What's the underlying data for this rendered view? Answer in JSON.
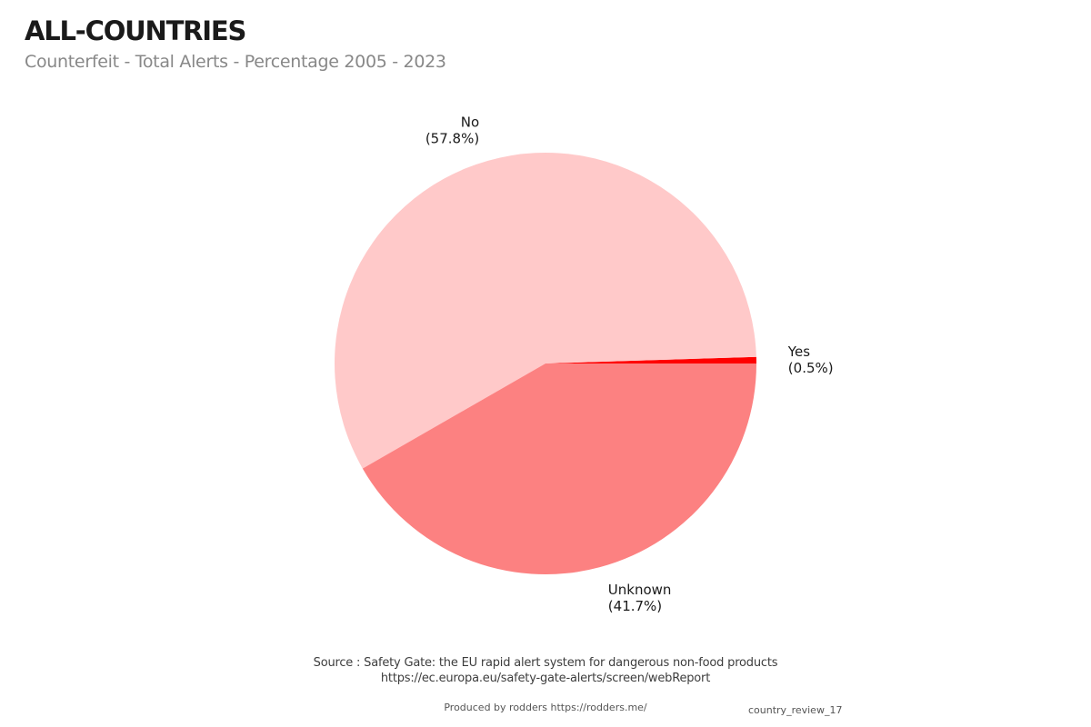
{
  "header": {
    "title": "ALL-COUNTRIES",
    "subtitle": "Counterfeit - Total Alerts - Percentage 2005 - 2023"
  },
  "chart_data": {
    "type": "pie",
    "title": "ALL-COUNTRIES",
    "subtitle": "Counterfeit - Total Alerts - Percentage 2005 - 2023",
    "slices": [
      {
        "label": "Yes",
        "value": 0.5,
        "percent_display": "(0.5%)",
        "color": "#ff0000"
      },
      {
        "label": "No",
        "value": 57.8,
        "percent_display": "(57.8%)",
        "color": "#ffc9c9"
      },
      {
        "label": "Unknown",
        "value": 41.7,
        "percent_display": "(41.7%)",
        "color": "#fc8181"
      }
    ],
    "start_angle_deg": 0,
    "direction": "counterclockwise",
    "label_position": "outside",
    "legend": "none"
  },
  "footer": {
    "source_line1": "Source : Safety Gate: the EU rapid alert system for dangerous non-food products",
    "source_line2": "https://ec.europa.eu/safety-gate-alerts/screen/webReport",
    "credit": "Produced by rodders https://rodders.me/",
    "watermark": "country_review_17"
  }
}
